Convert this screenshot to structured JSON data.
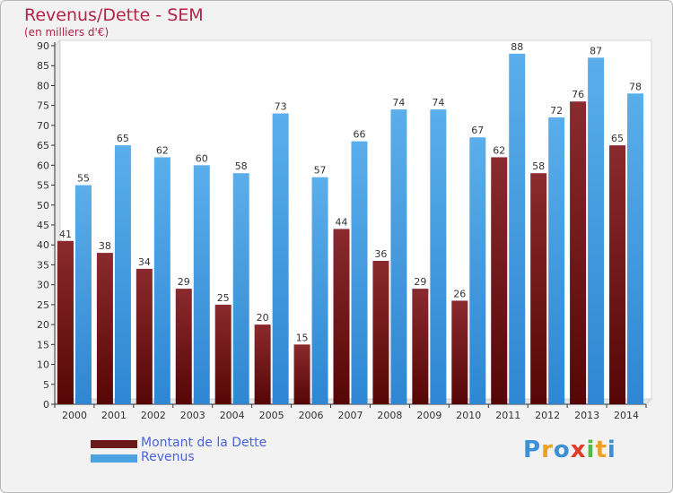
{
  "title": "Revenus/Dette - SEM",
  "subtitle": "(en milliers d'€)",
  "colors": {
    "title": "#b5224a",
    "debt": "#7a1f24",
    "revenue": "#4da3e2",
    "legend_text": "#4a63e0"
  },
  "legend": [
    {
      "label": "Montant de la Dette",
      "color": "#6b1a1a"
    },
    {
      "label": "Revenus",
      "color": "#4da3e2"
    }
  ],
  "logo": {
    "text": "Proxiti",
    "letters": [
      "P",
      "r",
      "o",
      "x",
      "i",
      "t",
      "i"
    ]
  },
  "chart_data": {
    "type": "bar",
    "categories": [
      "2000",
      "2001",
      "2002",
      "2003",
      "2004",
      "2005",
      "2006",
      "2007",
      "2008",
      "2009",
      "2010",
      "2011",
      "2012",
      "2013",
      "2014"
    ],
    "series": [
      {
        "name": "Montant de la Dette",
        "values": [
          41,
          38,
          34,
          29,
          25,
          20,
          15,
          44,
          36,
          29,
          26,
          62,
          58,
          76,
          65
        ]
      },
      {
        "name": "Revenus",
        "values": [
          55,
          65,
          62,
          60,
          58,
          73,
          57,
          66,
          74,
          74,
          67,
          88,
          72,
          87,
          78
        ]
      }
    ],
    "ylim": [
      0,
      90
    ],
    "yticks": [
      0,
      5,
      10,
      15,
      20,
      25,
      30,
      35,
      40,
      45,
      50,
      55,
      60,
      65,
      70,
      75,
      80,
      85,
      90
    ],
    "grid": false,
    "legend_position": "bottom-left"
  }
}
